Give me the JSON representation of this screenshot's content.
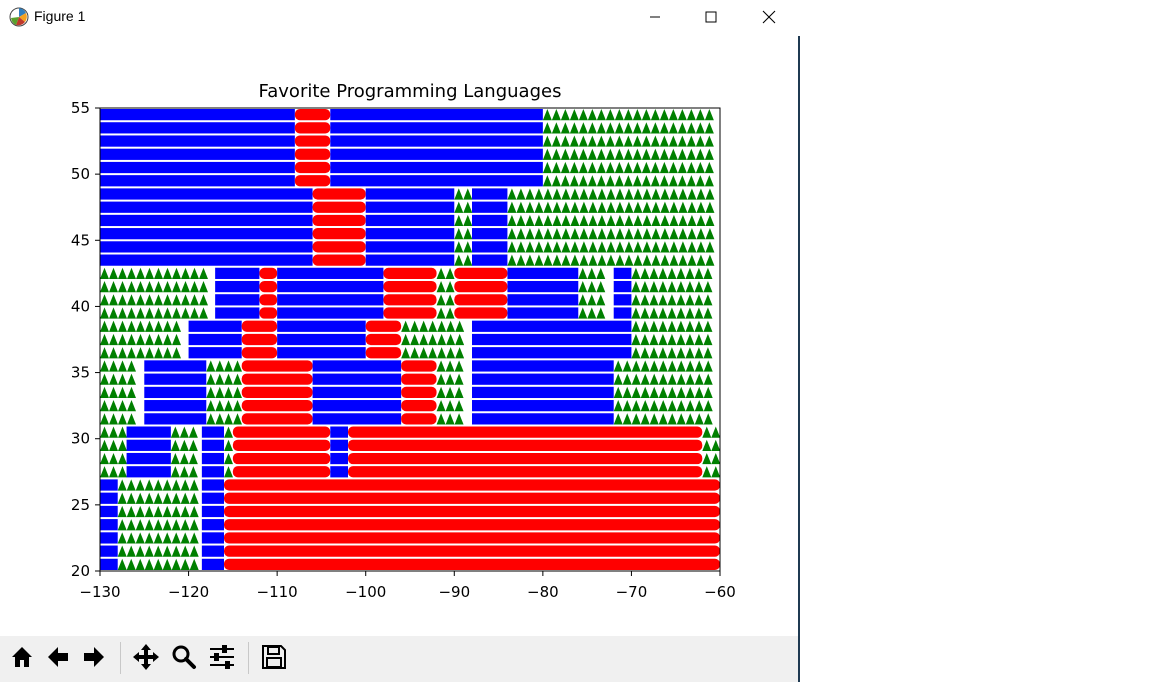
{
  "window": {
    "title": "Figure 1",
    "controls": [
      "minimize",
      "maximize",
      "close"
    ]
  },
  "toolbar": {
    "buttons": [
      {
        "name": "home-button",
        "icon": "home-icon"
      },
      {
        "name": "back-button",
        "icon": "arrow-left-icon"
      },
      {
        "name": "forward-button",
        "icon": "arrow-right-icon"
      },
      {
        "name": "pan-button",
        "icon": "move-icon"
      },
      {
        "name": "zoom-button",
        "icon": "magnifier-icon"
      },
      {
        "name": "configure-subplots-button",
        "icon": "sliders-icon"
      },
      {
        "name": "save-button",
        "icon": "floppy-disk-icon"
      }
    ]
  },
  "chart_data": {
    "type": "scatter",
    "title": "Favorite Programming Languages",
    "xlabel": "",
    "ylabel": "",
    "xlim": [
      -130,
      -60
    ],
    "ylim": [
      20,
      55
    ],
    "xticks": [
      -130,
      -120,
      -110,
      -100,
      -90,
      -80,
      -70,
      -60
    ],
    "yticks": [
      20,
      25,
      30,
      35,
      40,
      45,
      50,
      55
    ],
    "grid": false,
    "legend": "none",
    "grid_spacing": 1,
    "series_colors": {
      "red": "#ff0000",
      "blue": "#0000ff",
      "green": "#008000"
    },
    "markers": {
      "red": "circle",
      "blue": "square",
      "green": "triangle"
    },
    "regions": [
      {
        "y_from": 20,
        "y_to": 26,
        "segments": [
          [
            -130,
            -128,
            "blue"
          ],
          [
            -128,
            -118.5,
            "green"
          ],
          [
            -118.5,
            -116,
            "blue"
          ],
          [
            -116,
            -60,
            "red"
          ]
        ]
      },
      {
        "y_from": 27,
        "y_to": 30,
        "segments": [
          [
            -130,
            -127,
            "green"
          ],
          [
            -127,
            -122,
            "blue"
          ],
          [
            -122,
            -118.5,
            "green"
          ],
          [
            -118.5,
            -116,
            "blue"
          ],
          [
            -116,
            -115,
            "green"
          ],
          [
            -115,
            -104,
            "red"
          ],
          [
            -104,
            -102,
            "blue"
          ],
          [
            -102,
            -62,
            "red"
          ],
          [
            -62,
            -60,
            "green"
          ]
        ]
      },
      {
        "y_from": 31,
        "y_to": 35,
        "segments": [
          [
            -130,
            -125,
            "green"
          ],
          [
            -125,
            -118,
            "blue"
          ],
          [
            -118,
            -116,
            "green"
          ],
          [
            -116,
            -114,
            "green"
          ],
          [
            -114,
            -106,
            "red"
          ],
          [
            -106,
            -96,
            "blue"
          ],
          [
            -96,
            -92,
            "red"
          ],
          [
            -92,
            -88,
            "green"
          ],
          [
            -88,
            -72,
            "blue"
          ],
          [
            -72,
            -60,
            "green"
          ]
        ]
      },
      {
        "y_from": 36,
        "y_to": 38,
        "segments": [
          [
            -130,
            -120,
            "green"
          ],
          [
            -120,
            -114,
            "blue"
          ],
          [
            -114,
            -110,
            "red"
          ],
          [
            -110,
            -100,
            "blue"
          ],
          [
            -100,
            -96,
            "red"
          ],
          [
            -96,
            -88,
            "green"
          ],
          [
            -88,
            -70,
            "blue"
          ],
          [
            -70,
            -60,
            "green"
          ]
        ]
      },
      {
        "y_from": 39,
        "y_to": 42,
        "segments": [
          [
            -130,
            -117,
            "green"
          ],
          [
            -117,
            -112,
            "blue"
          ],
          [
            -112,
            -110,
            "red"
          ],
          [
            -110,
            -98,
            "blue"
          ],
          [
            -98,
            -92,
            "red"
          ],
          [
            -92,
            -90,
            "green"
          ],
          [
            -90,
            -84,
            "red"
          ],
          [
            -84,
            -76,
            "blue"
          ],
          [
            -76,
            -72,
            "green"
          ],
          [
            -72,
            -70,
            "blue"
          ],
          [
            -70,
            -60,
            "green"
          ]
        ]
      },
      {
        "y_from": 43,
        "y_to": 48,
        "segments": [
          [
            -130,
            -106,
            "blue"
          ],
          [
            -106,
            -100,
            "red"
          ],
          [
            -100,
            -90,
            "blue"
          ],
          [
            -90,
            -88,
            "green"
          ],
          [
            -88,
            -84,
            "blue"
          ],
          [
            -84,
            -60,
            "green"
          ]
        ]
      },
      {
        "y_from": 49,
        "y_to": 54,
        "segments": [
          [
            -130,
            -108,
            "blue"
          ],
          [
            -108,
            -104,
            "red"
          ],
          [
            -104,
            -80,
            "blue"
          ],
          [
            -80,
            -60,
            "green"
          ]
        ]
      }
    ]
  }
}
